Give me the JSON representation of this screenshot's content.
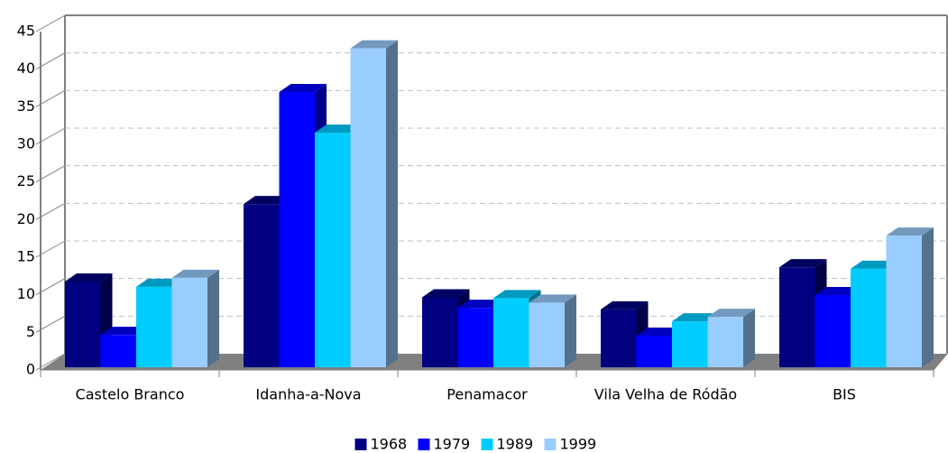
{
  "chart_data": {
    "type": "bar3d",
    "categories": [
      "Castelo Branco",
      "Idanha-a-Nova",
      "Penamacor",
      "Vila Velha de Ródão",
      "BIS"
    ],
    "series": [
      {
        "name": "1968",
        "color": "#000080",
        "values": [
          11.4,
          21.7,
          9.3,
          7.7,
          13.3
        ]
      },
      {
        "name": "1979",
        "color": "#0000ff",
        "values": [
          4.3,
          36.6,
          7.9,
          4.2,
          9.6
        ]
      },
      {
        "name": "1989",
        "color": "#00ccff",
        "values": [
          10.7,
          31.2,
          9.2,
          6.1,
          13.1
        ]
      },
      {
        "name": "1999",
        "color": "#99ccff",
        "values": [
          11.9,
          42.4,
          8.6,
          6.7,
          17.5
        ]
      }
    ],
    "ylim": [
      0,
      45
    ],
    "yticks": [
      0,
      5,
      10,
      15,
      20,
      25,
      30,
      35,
      40,
      45
    ],
    "grid": true,
    "legend": "bottom"
  }
}
